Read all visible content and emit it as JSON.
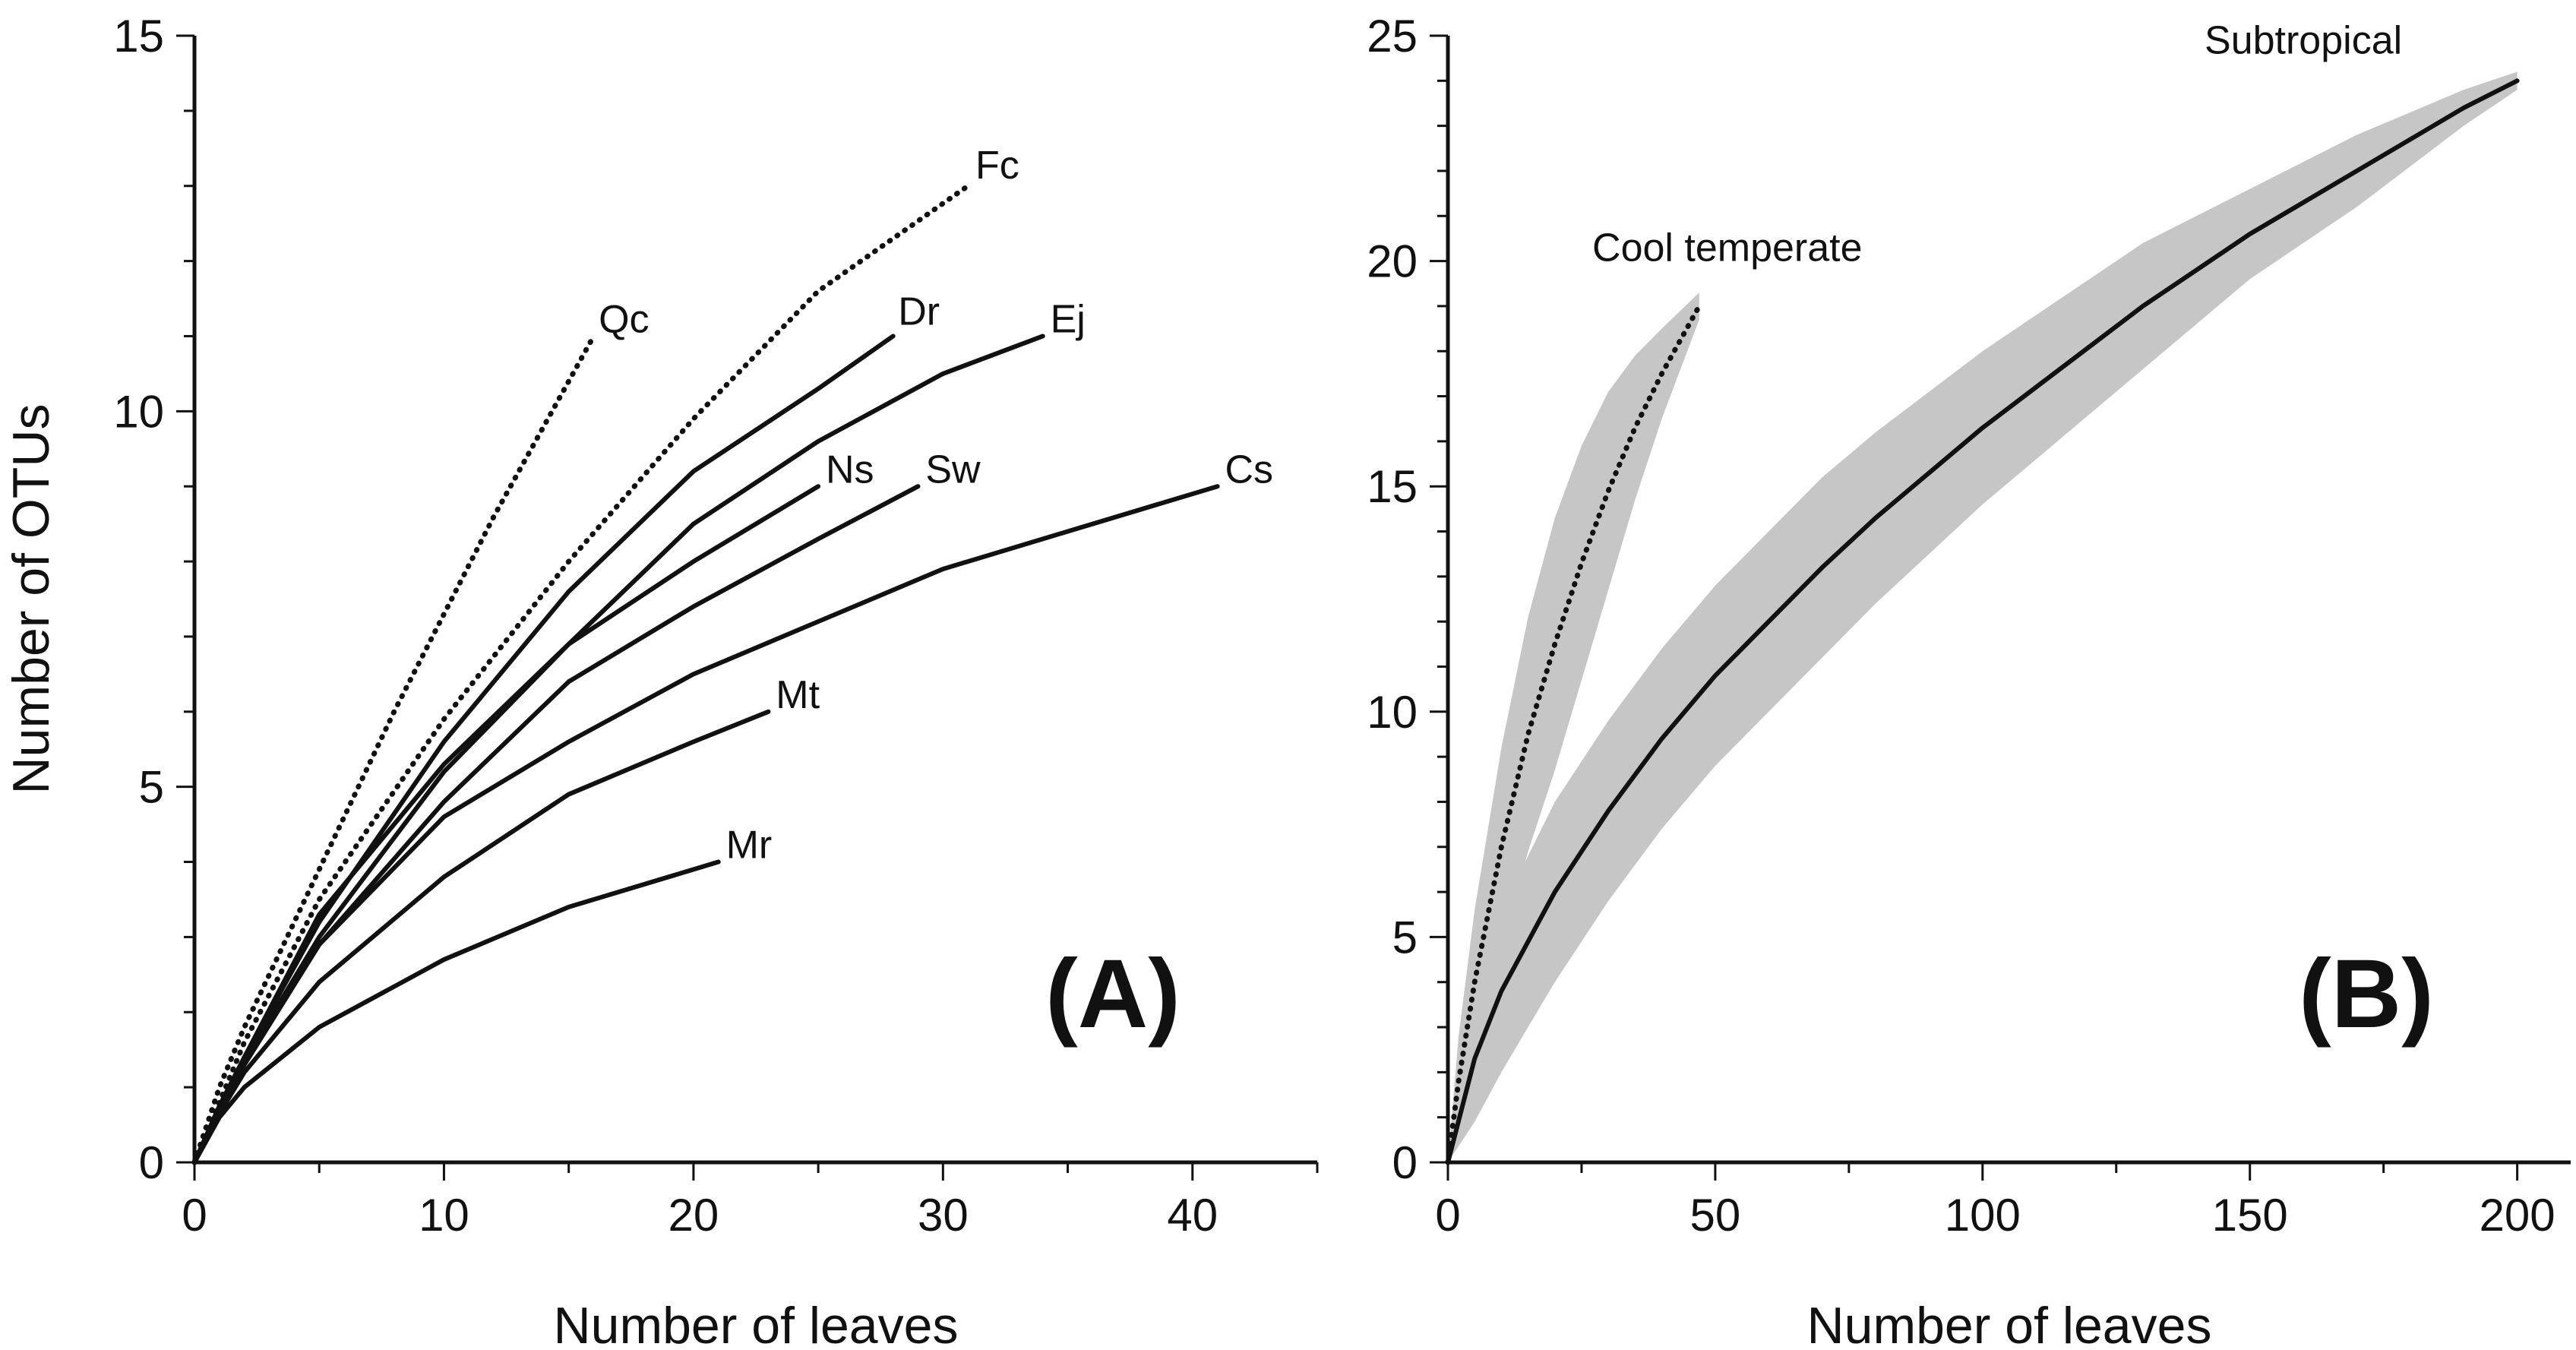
{
  "chart_data": [
    {
      "panel": "A",
      "type": "line",
      "panel_label": "(A)",
      "xlabel": "Number of leaves",
      "ylabel": "Number of OTUs",
      "xlim": [
        0,
        45
      ],
      "ylim": [
        0,
        15
      ],
      "xticks": [
        0,
        10,
        20,
        30,
        40
      ],
      "yticks": [
        0,
        5,
        10,
        15
      ],
      "series": [
        {
          "name": "Qc",
          "style": "dotted",
          "x": [
            0,
            1,
            2,
            4,
            6,
            8,
            10,
            12,
            14,
            16
          ],
          "y": [
            0,
            1.0,
            1.8,
            3.2,
            4.6,
            6.0,
            7.3,
            8.6,
            9.8,
            11.0
          ]
        },
        {
          "name": "Fc",
          "style": "dotted",
          "x": [
            0,
            1,
            2,
            5,
            10,
            15,
            20,
            25,
            31
          ],
          "y": [
            0,
            0.8,
            1.6,
            3.5,
            5.9,
            8.0,
            9.9,
            11.6,
            13.0
          ]
        },
        {
          "name": "Dr",
          "style": "solid",
          "x": [
            0,
            1,
            2,
            5,
            10,
            15,
            20,
            25,
            28
          ],
          "y": [
            0,
            0.75,
            1.4,
            3.2,
            5.6,
            7.6,
            9.2,
            10.3,
            11.0
          ]
        },
        {
          "name": "Ej",
          "style": "solid",
          "x": [
            0,
            1,
            2,
            5,
            10,
            15,
            20,
            25,
            30,
            34
          ],
          "y": [
            0,
            0.75,
            1.4,
            3.3,
            5.3,
            6.9,
            8.5,
            9.6,
            10.5,
            11.0
          ]
        },
        {
          "name": "Ns",
          "style": "solid",
          "x": [
            0,
            1,
            2,
            5,
            10,
            15,
            20,
            25
          ],
          "y": [
            0,
            0.7,
            1.35,
            3.0,
            5.2,
            6.9,
            8.0,
            9.0
          ]
        },
        {
          "name": "Sw",
          "style": "solid",
          "x": [
            0,
            1,
            2,
            5,
            10,
            15,
            20,
            25,
            29
          ],
          "y": [
            0,
            0.7,
            1.3,
            2.9,
            4.8,
            6.4,
            7.4,
            8.3,
            9.0
          ]
        },
        {
          "name": "Cs",
          "style": "solid",
          "x": [
            0,
            1,
            2,
            5,
            10,
            15,
            20,
            25,
            30,
            35,
            41
          ],
          "y": [
            0,
            0.7,
            1.3,
            2.9,
            4.6,
            5.6,
            6.5,
            7.2,
            7.9,
            8.4,
            9.0
          ]
        },
        {
          "name": "Mt",
          "style": "solid",
          "x": [
            0,
            1,
            2,
            5,
            10,
            15,
            20,
            23
          ],
          "y": [
            0,
            0.65,
            1.2,
            2.4,
            3.8,
            4.9,
            5.6,
            6.0
          ]
        },
        {
          "name": "Mr",
          "style": "solid",
          "x": [
            0,
            1,
            2,
            5,
            10,
            15,
            21
          ],
          "y": [
            0,
            0.6,
            1.0,
            1.8,
            2.7,
            3.4,
            4.0
          ]
        }
      ],
      "labels": [
        {
          "text": "Qc",
          "x": 16.2,
          "y": 11.05
        },
        {
          "text": "Fc",
          "x": 31.3,
          "y": 13.1
        },
        {
          "text": "Dr",
          "x": 28.2,
          "y": 11.15
        },
        {
          "text": "Ej",
          "x": 34.3,
          "y": 11.05
        },
        {
          "text": "Ns",
          "x": 25.3,
          "y": 9.05
        },
        {
          "text": "Sw",
          "x": 29.3,
          "y": 9.05
        },
        {
          "text": "Cs",
          "x": 41.3,
          "y": 9.05
        },
        {
          "text": "Mt",
          "x": 23.3,
          "y": 6.05
        },
        {
          "text": "Mr",
          "x": 21.3,
          "y": 4.05
        }
      ]
    },
    {
      "panel": "B",
      "type": "line",
      "panel_label": "(B)",
      "xlabel": "Number of leaves",
      "ylabel": "",
      "xlim": [
        0,
        210
      ],
      "ylim": [
        0,
        25
      ],
      "xticks": [
        0,
        50,
        100,
        150,
        200
      ],
      "yticks": [
        0,
        5,
        10,
        15,
        20,
        25
      ],
      "series": [
        {
          "name": "Subtropical",
          "style": "solid",
          "x": [
            0,
            5,
            10,
            20,
            30,
            40,
            50,
            60,
            70,
            80,
            90,
            100,
            110,
            120,
            130,
            140,
            150,
            160,
            170,
            180,
            190,
            200
          ],
          "y": [
            0,
            2.3,
            3.8,
            6.0,
            7.8,
            9.4,
            10.8,
            12.0,
            13.2,
            14.3,
            15.3,
            16.3,
            17.2,
            18.1,
            19.0,
            19.8,
            20.6,
            21.3,
            22.0,
            22.7,
            23.4,
            24.0
          ],
          "ci_halfwidth": [
            0,
            1.4,
            1.8,
            2.0,
            2.0,
            2.0,
            2.0,
            2.0,
            2.0,
            1.9,
            1.8,
            1.7,
            1.6,
            1.5,
            1.4,
            1.2,
            1.0,
            0.9,
            0.8,
            0.6,
            0.4,
            0.2
          ]
        },
        {
          "name": "Cool temperate",
          "style": "dotted",
          "x": [
            0,
            2,
            5,
            10,
            15,
            20,
            25,
            30,
            35,
            40,
            47
          ],
          "y": [
            0,
            1.8,
            4.0,
            7.0,
            9.5,
            11.5,
            13.3,
            14.9,
            16.3,
            17.5,
            19.0
          ],
          "ci_halfwidth": [
            0,
            1.0,
            1.6,
            2.2,
            2.6,
            2.8,
            2.6,
            2.2,
            1.6,
            1.0,
            0.3
          ]
        }
      ],
      "labels": [
        {
          "text": "Subtropical",
          "x": 160,
          "y": 24.6
        },
        {
          "text": "Cool temperate",
          "x": 27,
          "y": 20.0
        }
      ]
    }
  ],
  "colors": {
    "line": "#111111",
    "ci_band": "#c6c6c6",
    "axis": "#111111",
    "background": "#ffffff"
  }
}
